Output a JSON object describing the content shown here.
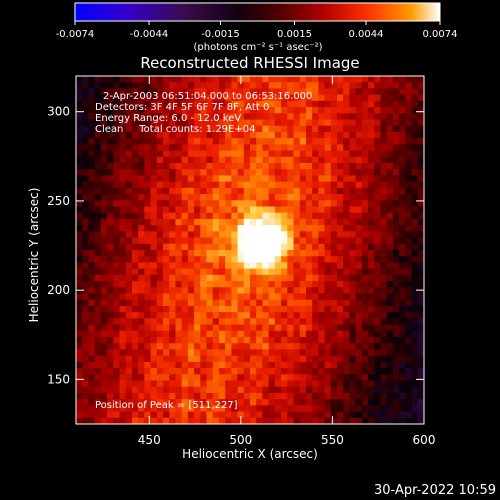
{
  "chart_data": {
    "type": "heatmap",
    "title": "Reconstructed RHESSI Image",
    "xlabel": "Heliocentric X (arcsec)",
    "ylabel": "Heliocentric Y (arcsec)",
    "xlim": [
      410,
      600
    ],
    "ylim": [
      125,
      320
    ],
    "x_ticks": [
      "450",
      "500",
      "550",
      "600"
    ],
    "y_ticks": [
      "150",
      "200",
      "250",
      "300"
    ],
    "colorbar": {
      "ticks": [
        "-0.0074",
        "-0.0044",
        "-0.0015",
        "0.0015",
        "0.0044",
        "0.0074"
      ],
      "range": [
        -0.0074,
        0.0074
      ],
      "unit_label": "(photons cm⁻² s⁻¹ asec⁻²)",
      "colormap": [
        "#0000ff",
        "#4400aa",
        "#3a0c4c",
        "#000000",
        "#6a0000",
        "#c00000",
        "#ff3300",
        "#ff9900",
        "#ffffff"
      ]
    },
    "annotations": [
      "2-Apr-2003 06:51:04.000 to 06:53:16.000",
      "Detectors: 3F 4F 5F 6F 7F 8F, Att 0",
      "Energy Range: 6.0 - 12.0 keV",
      "Clean     Total counts: 1.29E+04"
    ],
    "peak_label": "Position of Peak = [511,227]",
    "peak": {
      "x": 511,
      "y": 227
    },
    "grid": false,
    "legend": "none"
  },
  "footer": {
    "timestamp": "30-Apr-2022 10:59"
  }
}
